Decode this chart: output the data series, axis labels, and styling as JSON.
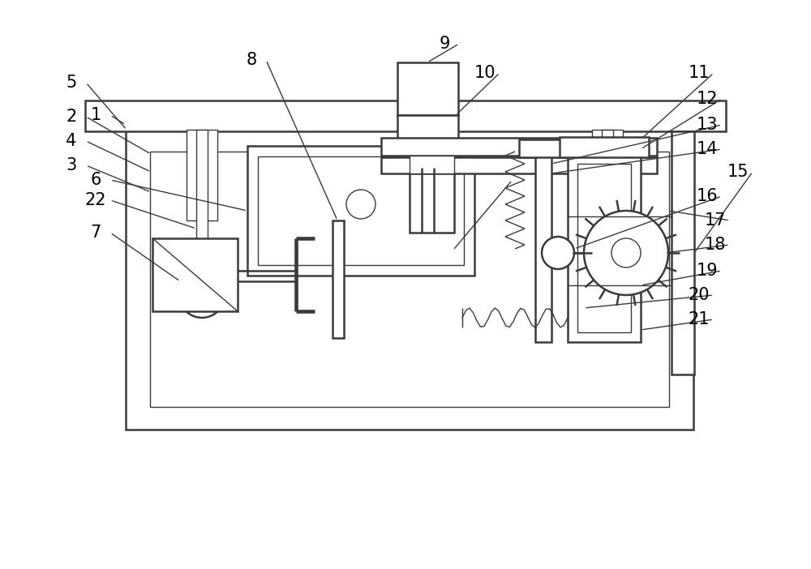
{
  "bg_color": "#ffffff",
  "line_color": "#3a3a3a",
  "label_color": "#000000",
  "lw_main": 1.8,
  "lw_thin": 1.0,
  "font_size": 15
}
